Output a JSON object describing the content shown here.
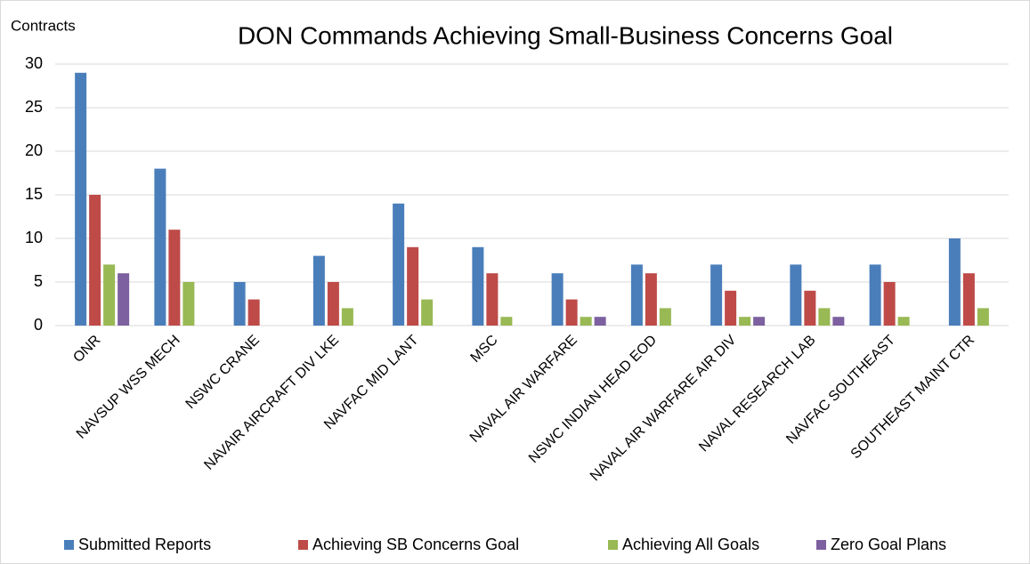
{
  "chart_data": {
    "type": "bar",
    "title": "DON Commands Achieving Small-Business Concerns  Goal",
    "y_label": "Contracts",
    "categories": [
      "ONR",
      "NAVSUP WSS MECH",
      "NSWC CRANE",
      "NAVAIR AIRCRAFT DIV LKE",
      "NAVFAC MID LANT",
      "MSC",
      "NAVAL AIR WARFARE",
      "NSWC INDIAN HEAD EOD",
      "NAVAL AIR WARFARE AIR DIV",
      "NAVAL RESEARCH LAB",
      "NAVFAC SOUTHEAST",
      "SOUTHEAST MAINT CTR"
    ],
    "series": [
      {
        "name": "Submitted Reports",
        "color": "#4a7ebb",
        "values": [
          29,
          18,
          5,
          8,
          14,
          9,
          6,
          7,
          7,
          7,
          7,
          10
        ]
      },
      {
        "name": "Achieving SB Concerns Goal",
        "color": "#be4b48",
        "values": [
          15,
          11,
          3,
          5,
          9,
          6,
          3,
          6,
          4,
          4,
          5,
          6
        ]
      },
      {
        "name": "Achieving All Goals",
        "color": "#98b954",
        "values": [
          7,
          5,
          0,
          2,
          3,
          1,
          1,
          2,
          1,
          2,
          1,
          2
        ]
      },
      {
        "name": "Zero Goal Plans",
        "color": "#7d60a0",
        "values": [
          6,
          0,
          0,
          0,
          0,
          0,
          1,
          0,
          1,
          1,
          0,
          0
        ]
      }
    ],
    "ylim": [
      0,
      30
    ],
    "yticks": [
      0,
      5,
      10,
      15,
      20,
      25,
      30
    ],
    "grid": true,
    "legend": "bottom"
  }
}
